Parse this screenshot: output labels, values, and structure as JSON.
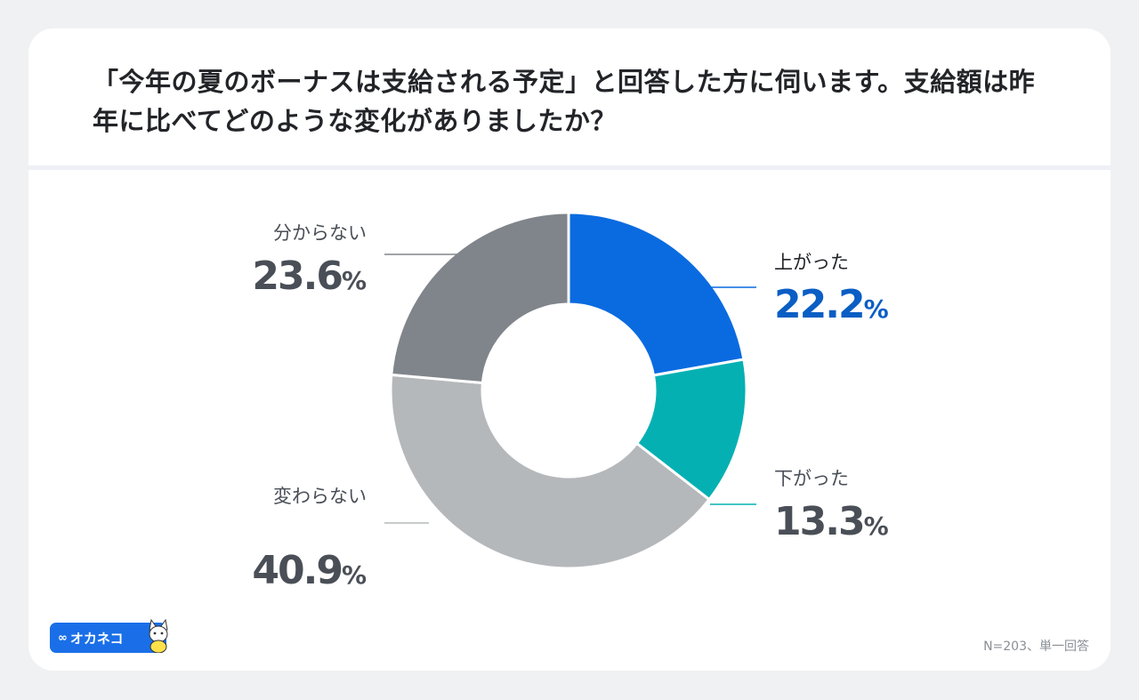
{
  "title": "「今年の夏のボーナスは支給される予定」と回答した方に伺います。支給額は昨年に比べてどのような変化がありましたか？",
  "footnote": "N=203、単一回答",
  "logo": {
    "text": "オカネコ",
    "icon": "cat-mascot-icon"
  },
  "colors": {
    "up": "#0a6be0",
    "down": "#05b0b3",
    "unchanged": "#b5b8bb",
    "unknown": "#80858b",
    "dark_text": "#4a4f57",
    "blue_text": "#0a5ec4"
  },
  "chart_data": {
    "type": "pie",
    "donut": true,
    "title": "「今年の夏のボーナスは支給される予定」と回答した方に伺います。支給額は昨年に比べてどのような変化がありましたか？",
    "unit": "%",
    "categories": [
      "上がった",
      "下がった",
      "変わらない",
      "分からない"
    ],
    "values": [
      22.2,
      13.3,
      40.9,
      23.6
    ],
    "labels": [
      "22.2",
      "13.3",
      "40.9",
      "23.6"
    ],
    "n": 203
  }
}
